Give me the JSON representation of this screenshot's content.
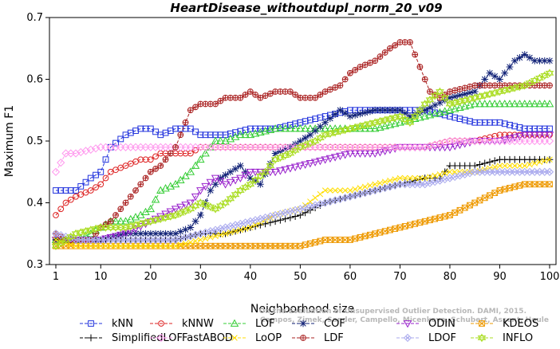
{
  "chart_data": {
    "type": "line",
    "title": "HeartDisease_withoutdupl_norm_20_v09",
    "xlabel": "Neighborhood size",
    "ylabel": "Maximum F1",
    "xlim": [
      1,
      100
    ],
    "ylim": [
      0.3,
      0.7
    ],
    "xticks": [
      1,
      10,
      20,
      30,
      40,
      50,
      60,
      70,
      80,
      90,
      100
    ],
    "yticks": [
      0.3,
      0.4,
      0.5,
      0.6,
      0.7
    ],
    "grid": false,
    "legend_position": "bottom",
    "credit": [
      "Campos, Zimek, Sander, Campello, Micenkova, Schubert, Assent, Houle",
      "On the Evaluation of Unsupervised Outlier Detection. DAMI, 2015."
    ],
    "series": [
      {
        "name": "kNN",
        "color": "#2233dd",
        "marker": "square",
        "x": [
          1,
          5,
          8,
          10,
          12,
          15,
          18,
          20,
          22,
          25,
          28,
          30,
          35,
          40,
          45,
          50,
          55,
          60,
          65,
          70,
          75,
          80,
          85,
          90,
          95,
          100
        ],
        "values": [
          0.42,
          0.42,
          0.44,
          0.45,
          0.49,
          0.51,
          0.52,
          0.52,
          0.51,
          0.52,
          0.52,
          0.51,
          0.51,
          0.52,
          0.52,
          0.53,
          0.54,
          0.55,
          0.55,
          0.55,
          0.55,
          0.54,
          0.53,
          0.53,
          0.52,
          0.52
        ]
      },
      {
        "name": "kNNW",
        "color": "#dd2222",
        "marker": "circle",
        "x": [
          1,
          3,
          5,
          8,
          10,
          12,
          15,
          18,
          20,
          22,
          25,
          28,
          30,
          35,
          40,
          45,
          50,
          55,
          60,
          65,
          70,
          75,
          80,
          85,
          90,
          95,
          100
        ],
        "values": [
          0.38,
          0.4,
          0.41,
          0.42,
          0.43,
          0.45,
          0.46,
          0.47,
          0.47,
          0.48,
          0.48,
          0.48,
          0.49,
          0.49,
          0.49,
          0.49,
          0.49,
          0.49,
          0.49,
          0.49,
          0.49,
          0.49,
          0.5,
          0.5,
          0.51,
          0.51,
          0.51
        ]
      },
      {
        "name": "LOF",
        "color": "#33cc33",
        "marker": "triangle-up",
        "x": [
          1,
          5,
          8,
          10,
          12,
          15,
          18,
          20,
          22,
          25,
          28,
          30,
          33,
          35,
          38,
          40,
          45,
          50,
          55,
          60,
          65,
          70,
          75,
          80,
          85,
          90,
          95,
          100
        ],
        "values": [
          0.34,
          0.34,
          0.35,
          0.36,
          0.37,
          0.37,
          0.38,
          0.39,
          0.42,
          0.43,
          0.45,
          0.47,
          0.5,
          0.5,
          0.51,
          0.51,
          0.52,
          0.52,
          0.52,
          0.52,
          0.52,
          0.53,
          0.54,
          0.55,
          0.56,
          0.56,
          0.56,
          0.56
        ]
      },
      {
        "name": "COF",
        "color": "#112277",
        "marker": "star",
        "x": [
          1,
          5,
          10,
          15,
          20,
          25,
          28,
          30,
          32,
          34,
          36,
          38,
          40,
          42,
          45,
          48,
          50,
          52,
          55,
          58,
          60,
          65,
          70,
          72,
          75,
          80,
          85,
          88,
          90,
          93,
          95,
          97,
          100
        ],
        "values": [
          0.34,
          0.34,
          0.34,
          0.35,
          0.35,
          0.35,
          0.36,
          0.38,
          0.42,
          0.44,
          0.45,
          0.46,
          0.44,
          0.43,
          0.48,
          0.49,
          0.5,
          0.51,
          0.53,
          0.55,
          0.54,
          0.55,
          0.55,
          0.54,
          0.55,
          0.57,
          0.58,
          0.61,
          0.6,
          0.63,
          0.64,
          0.63,
          0.63
        ]
      },
      {
        "name": "ODIN",
        "color": "#9922cc",
        "marker": "triangle-down",
        "x": [
          1,
          5,
          10,
          15,
          20,
          25,
          28,
          30,
          33,
          35,
          38,
          40,
          45,
          50,
          55,
          60,
          65,
          70,
          75,
          80,
          85,
          90,
          95,
          100
        ],
        "values": [
          0.34,
          0.34,
          0.34,
          0.35,
          0.37,
          0.39,
          0.4,
          0.42,
          0.44,
          0.43,
          0.44,
          0.45,
          0.45,
          0.46,
          0.47,
          0.48,
          0.48,
          0.49,
          0.49,
          0.49,
          0.5,
          0.5,
          0.51,
          0.51
        ]
      },
      {
        "name": "KDEOS",
        "color": "#ee9900",
        "marker": "square-x",
        "x": [
          1,
          5,
          10,
          15,
          20,
          25,
          30,
          35,
          40,
          45,
          50,
          55,
          60,
          65,
          70,
          75,
          80,
          85,
          90,
          95,
          100
        ],
        "values": [
          0.33,
          0.33,
          0.33,
          0.33,
          0.33,
          0.33,
          0.33,
          0.33,
          0.33,
          0.33,
          0.33,
          0.34,
          0.34,
          0.35,
          0.36,
          0.37,
          0.38,
          0.4,
          0.42,
          0.43,
          0.43
        ]
      },
      {
        "name": "SimplifiedLOF",
        "color": "#000000",
        "marker": "plus",
        "x": [
          1,
          5,
          10,
          15,
          20,
          25,
          30,
          35,
          40,
          45,
          50,
          55,
          60,
          65,
          70,
          75,
          78,
          80,
          85,
          90,
          95,
          100
        ],
        "values": [
          0.34,
          0.34,
          0.34,
          0.34,
          0.34,
          0.34,
          0.35,
          0.35,
          0.36,
          0.37,
          0.38,
          0.4,
          0.41,
          0.42,
          0.43,
          0.44,
          0.44,
          0.46,
          0.46,
          0.47,
          0.47,
          0.47
        ]
      },
      {
        "name": "FastABOD",
        "color": "#ff99ee",
        "marker": "diamond",
        "x": [
          1,
          3,
          5,
          10,
          15,
          20,
          25,
          30,
          35,
          40,
          45,
          50,
          55,
          60,
          65,
          70,
          75,
          80,
          85,
          90,
          95,
          100
        ],
        "values": [
          0.45,
          0.48,
          0.48,
          0.49,
          0.49,
          0.49,
          0.49,
          0.49,
          0.49,
          0.49,
          0.49,
          0.49,
          0.49,
          0.49,
          0.49,
          0.49,
          0.49,
          0.5,
          0.5,
          0.5,
          0.5,
          0.5
        ]
      },
      {
        "name": "LoOP",
        "color": "#ffdd00",
        "marker": "x",
        "x": [
          1,
          5,
          10,
          15,
          20,
          25,
          30,
          35,
          40,
          45,
          50,
          55,
          60,
          65,
          70,
          75,
          80,
          85,
          90,
          95,
          100
        ],
        "values": [
          0.34,
          0.33,
          0.33,
          0.33,
          0.33,
          0.33,
          0.34,
          0.35,
          0.36,
          0.38,
          0.39,
          0.42,
          0.42,
          0.43,
          0.44,
          0.44,
          0.45,
          0.45,
          0.46,
          0.46,
          0.47
        ]
      },
      {
        "name": "LDF",
        "color": "#aa2222",
        "marker": "circle-plus",
        "x": [
          1,
          3,
          5,
          8,
          10,
          12,
          15,
          18,
          20,
          22,
          25,
          27,
          28,
          30,
          33,
          35,
          38,
          40,
          42,
          45,
          48,
          50,
          53,
          55,
          58,
          60,
          62,
          65,
          68,
          70,
          72,
          74,
          76,
          78,
          80,
          85,
          90,
          95,
          100
        ],
        "values": [
          0.35,
          0.34,
          0.34,
          0.34,
          0.36,
          0.37,
          0.4,
          0.43,
          0.45,
          0.46,
          0.49,
          0.53,
          0.55,
          0.56,
          0.56,
          0.57,
          0.57,
          0.58,
          0.57,
          0.58,
          0.58,
          0.57,
          0.57,
          0.58,
          0.59,
          0.61,
          0.62,
          0.63,
          0.65,
          0.66,
          0.66,
          0.62,
          0.58,
          0.57,
          0.58,
          0.59,
          0.59,
          0.59,
          0.59
        ]
      },
      {
        "name": "LDOF",
        "color": "#aaaaee",
        "marker": "diamond-x",
        "x": [
          1,
          5,
          10,
          15,
          20,
          25,
          30,
          35,
          40,
          45,
          50,
          55,
          60,
          65,
          70,
          75,
          80,
          85,
          90,
          95,
          100
        ],
        "values": [
          0.35,
          0.34,
          0.34,
          0.34,
          0.34,
          0.34,
          0.35,
          0.36,
          0.37,
          0.38,
          0.39,
          0.4,
          0.41,
          0.42,
          0.43,
          0.43,
          0.44,
          0.45,
          0.45,
          0.45,
          0.45
        ]
      },
      {
        "name": "INFLO",
        "color": "#aadd22",
        "marker": "hexagram",
        "x": [
          1,
          5,
          10,
          15,
          20,
          25,
          28,
          30,
          33,
          35,
          38,
          40,
          43,
          45,
          48,
          50,
          53,
          55,
          60,
          65,
          70,
          72,
          75,
          78,
          80,
          85,
          90,
          95,
          100
        ],
        "values": [
          0.33,
          0.35,
          0.36,
          0.36,
          0.37,
          0.38,
          0.39,
          0.4,
          0.39,
          0.4,
          0.42,
          0.43,
          0.45,
          0.47,
          0.48,
          0.49,
          0.5,
          0.51,
          0.52,
          0.53,
          0.54,
          0.53,
          0.56,
          0.58,
          0.56,
          0.57,
          0.58,
          0.59,
          0.61
        ]
      }
    ]
  }
}
